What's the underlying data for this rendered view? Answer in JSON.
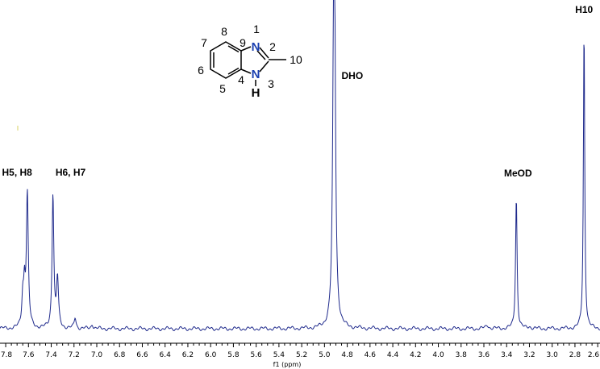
{
  "chart_data": {
    "type": "line",
    "xlabel": "f1 (ppm)",
    "xlim": [
      7.85,
      2.58
    ],
    "x_reversed": true,
    "ylim": [
      0,
      1.0
    ],
    "ticks": [
      "7.8",
      "7.6",
      "7.4",
      "7.2",
      "7.0",
      "6.8",
      "6.6",
      "6.4",
      "6.2",
      "6.0",
      "5.8",
      "5.6",
      "5.4",
      "5.2",
      "5.0",
      "4.8",
      "4.6",
      "4.4",
      "4.2",
      "4.0",
      "3.8",
      "3.6",
      "3.4",
      "3.2",
      "3.0",
      "2.8",
      "2.6"
    ],
    "peaks": [
      {
        "ppm": 7.61,
        "height": 0.44,
        "width": 0.01
      },
      {
        "ppm": 7.635,
        "height": 0.12,
        "width": 0.008
      },
      {
        "ppm": 7.65,
        "height": 0.1,
        "width": 0.01
      },
      {
        "ppm": 7.385,
        "height": 0.44,
        "width": 0.009
      },
      {
        "ppm": 7.345,
        "height": 0.16,
        "width": 0.01
      },
      {
        "ppm": 7.19,
        "height": 0.035,
        "width": 0.01
      },
      {
        "ppm": 7.04,
        "height": 0.015,
        "width": 0.01
      },
      {
        "ppm": 4.915,
        "height": 1.55,
        "width": 0.011
      },
      {
        "ppm": 3.315,
        "height": 0.43,
        "width": 0.008
      },
      {
        "ppm": 3.57,
        "height": 0.012,
        "width": 0.015
      },
      {
        "ppm": 3.2,
        "height": 0.006,
        "width": 0.015
      },
      {
        "ppm": 2.72,
        "height": 0.98,
        "width": 0.007
      }
    ],
    "annotations": [
      {
        "text": "H5, H8",
        "ppm": 7.7
      },
      {
        "text": "H6, H7",
        "ppm": 7.23
      },
      {
        "text": "DHO",
        "ppm": 4.85
      },
      {
        "text": "MeOD",
        "ppm": 3.3
      },
      {
        "text": "H10",
        "ppm": 2.72
      }
    ]
  },
  "molecule": {
    "numbers": [
      "1",
      "2",
      "3",
      "4",
      "5",
      "6",
      "7",
      "8",
      "9",
      "10"
    ],
    "atoms": {
      "n1": "N",
      "n3": "N",
      "h": "H"
    }
  },
  "colors": {
    "spectrum": "#1f2a8c",
    "nitrogen": "#1a3fb0"
  }
}
